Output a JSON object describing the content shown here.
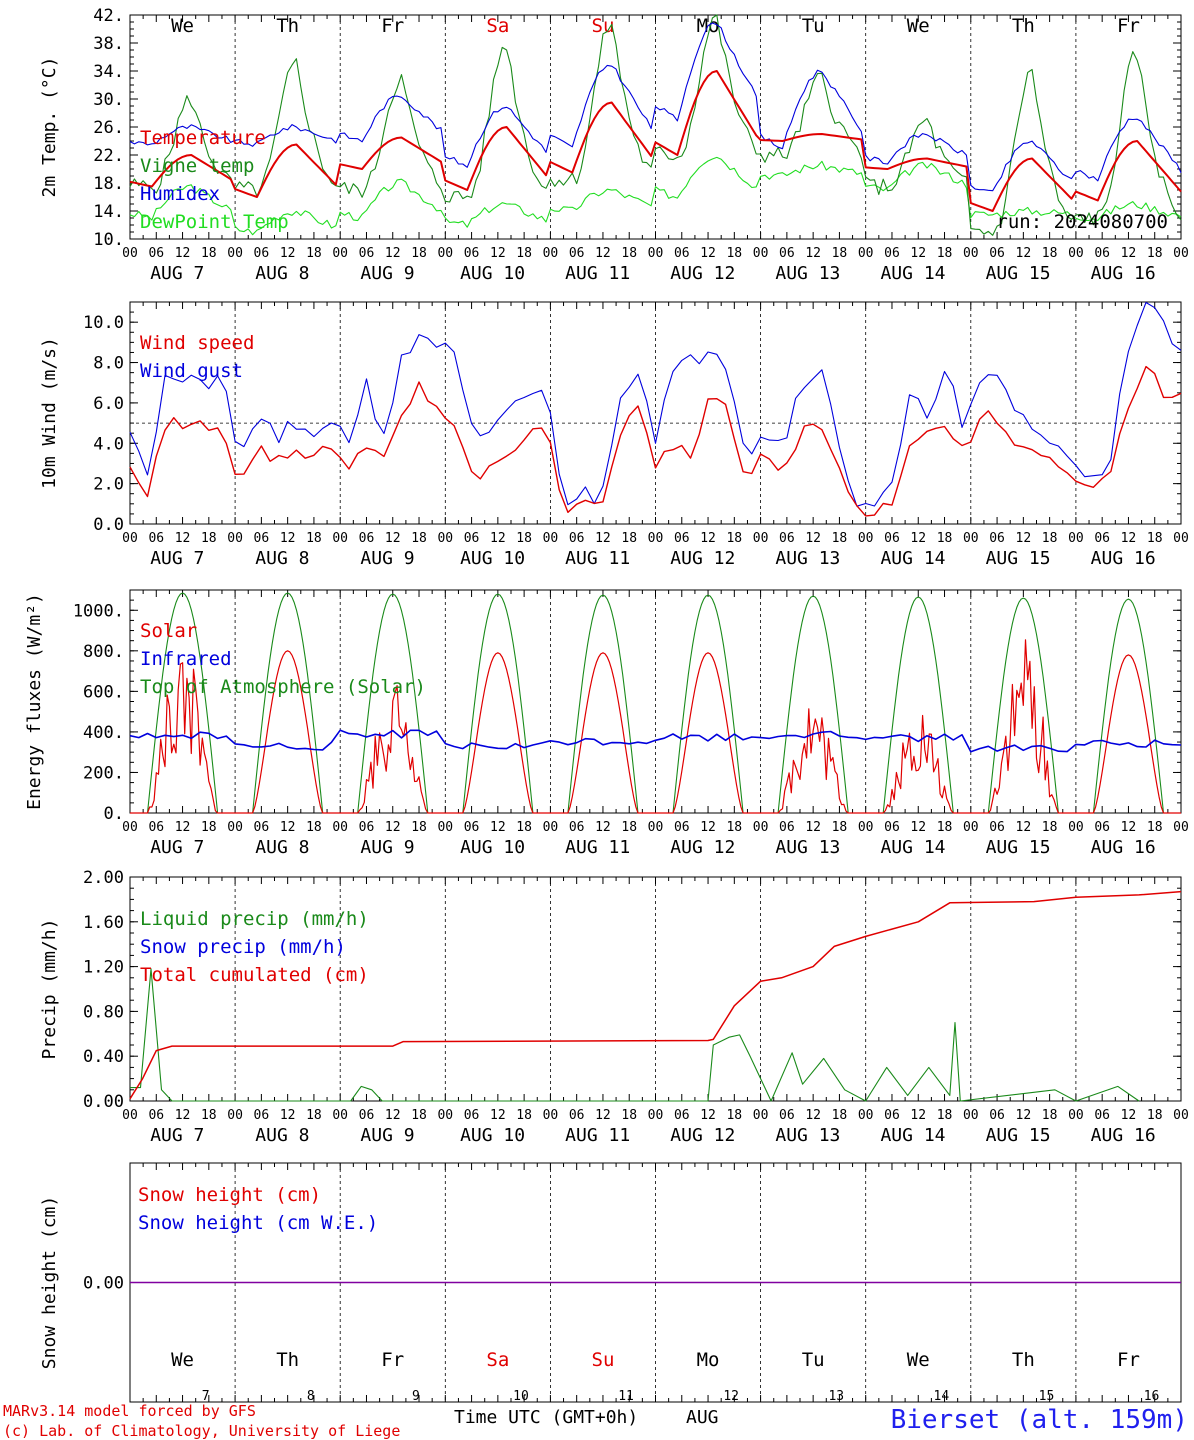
{
  "days": [
    "We",
    "Th",
    "Fr",
    "Sa",
    "Su",
    "Mo",
    "Tu",
    "We",
    "Th",
    "Fr"
  ],
  "day_colors": [
    "#000",
    "#000",
    "#000",
    "#e00000",
    "#e00000",
    "#000",
    "#000",
    "#000",
    "#000",
    "#000"
  ],
  "dates": [
    "AUG  7",
    "AUG  8",
    "AUG  9",
    "AUG 10",
    "AUG 11",
    "AUG 12",
    "AUG 13",
    "AUG 14",
    "AUG 15",
    "AUG 16"
  ],
  "day_numbers": [
    "7",
    "8",
    "9",
    "10",
    "11",
    "12",
    "13",
    "14",
    "15",
    "16"
  ],
  "hour_ticks": [
    "00",
    "06",
    "12",
    "18"
  ],
  "last_tick": "00",
  "run_label": "run: 2024080700",
  "footer": {
    "model": "MARv3.14 model forced by GFS",
    "lab": "(c) Lab. of Climatology, University of Liege",
    "xlabel": "Time UTC (GMT+0h)",
    "month": "AUG",
    "station": "Bierset (alt. 159m)"
  },
  "colors": {
    "red": "#e00000",
    "blue": "#0000dd",
    "green": "#1a8a1a",
    "lightgreen": "#22dd22",
    "purple": "#8000a0"
  },
  "chart_data": [
    {
      "type": "line",
      "ylabel": "2m Temp. (°C)",
      "ylim": [
        10,
        42
      ],
      "yticks": [
        "10.",
        "14.",
        "18.",
        "22.",
        "26.",
        "30.",
        "34.",
        "38.",
        "42."
      ],
      "series": [
        {
          "name": "Temperature",
          "color": "red"
        },
        {
          "name": "Vigne temp",
          "color": "green"
        },
        {
          "name": "Humidex",
          "color": "blue"
        },
        {
          "name": "DewPoint Temp",
          "color": "lightgreen"
        }
      ],
      "daily": {
        "Temperature": {
          "min": [
            17.5,
            16,
            20,
            17,
            19.5,
            22,
            24,
            20,
            14,
            15.5
          ],
          "max": [
            22,
            23.5,
            24.5,
            26,
            29.5,
            34,
            25,
            21.5,
            21.5,
            24
          ]
        },
        "Vigne temp": {
          "min": [
            17.5,
            17,
            17,
            16,
            18.5,
            22,
            22,
            17.5,
            11,
            13
          ],
          "max": [
            30,
            35,
            33,
            38,
            41,
            42,
            33,
            27,
            34,
            36.5
          ]
        },
        "Humidex": {
          "min": [
            23.5,
            23.5,
            24,
            20.5,
            23,
            27,
            23,
            21,
            16.5,
            18.5
          ],
          "max": [
            26,
            26,
            30.5,
            29,
            35,
            41,
            34,
            25,
            24,
            27.5
          ]
        },
        "DewPoint Temp": {
          "min": [
            13,
            11,
            13,
            12,
            14,
            16,
            19,
            17,
            13.5,
            13
          ],
          "max": [
            17.5,
            14,
            18,
            15,
            17,
            22,
            20.5,
            20.5,
            14,
            15
          ]
        }
      }
    },
    {
      "type": "line",
      "ylabel": "10m Wind (m/s)",
      "ylim": [
        0,
        11
      ],
      "yticks": [
        "0.0",
        "2.0",
        "4.0",
        "6.0",
        "8.0",
        "10.0"
      ],
      "reference_line": 5,
      "series": [
        {
          "name": "Wind speed",
          "color": "red"
        },
        {
          "name": "Wind gust",
          "color": "blue"
        }
      ],
      "speed": [
        3,
        1.6,
        5,
        5,
        4.8,
        5,
        1.8,
        4,
        3,
        3.8,
        3,
        4,
        2.5,
        4,
        3.5,
        5.5,
        7,
        5.5,
        4.5,
        2,
        3,
        3.3,
        4.8,
        4.5,
        0.8,
        1,
        0.8,
        4.5,
        5.8,
        3,
        4,
        3.2,
        6.5,
        5.5,
        2,
        3.5,
        2.5,
        4.5,
        5,
        3,
        0.8,
        0.6,
        1,
        4,
        4.5,
        5,
        3.5,
        5.5,
        5,
        4,
        3.5,
        3,
        2,
        1.7,
        2.2,
        5.5,
        8,
        6.5,
        6.3
      ],
      "gust": [
        5,
        2.6,
        7.5,
        7,
        6.8,
        7.5,
        3,
        5.5,
        4.3,
        4.7,
        4,
        5.5,
        4,
        7,
        4.5,
        8,
        9.5,
        9,
        8,
        4,
        4.2,
        6,
        6.5,
        6.3,
        1.2,
        1.5,
        1.2,
        6.5,
        7.8,
        4.5,
        7.5,
        8,
        9,
        8,
        3.5,
        4.7,
        3.8,
        7,
        8,
        4.5,
        1.2,
        1,
        1.5,
        6,
        5.5,
        8,
        4.5,
        7,
        7.3,
        5.5,
        4.7,
        3.8,
        3,
        2.5,
        3,
        8,
        10.8,
        10,
        8.3
      ]
    },
    {
      "type": "line",
      "ylabel": "Energy fluxes (W/m²)",
      "ylim": [
        0,
        1100
      ],
      "yticks": [
        "0.",
        "200.",
        "400.",
        "600.",
        "800.",
        "1000."
      ],
      "series": [
        {
          "name": "Solar",
          "color": "red"
        },
        {
          "name": "Infrared",
          "color": "blue"
        },
        {
          "name": "Top of Atmosphere (Solar)",
          "color": "green"
        }
      ],
      "toa_peak": [
        1085,
        1085,
        1080,
        1080,
        1075,
        1075,
        1070,
        1065,
        1060,
        1055
      ],
      "solar_peak": [
        750,
        800,
        600,
        790,
        790,
        790,
        550,
        480,
        780,
        780
      ],
      "infrared_mean": [
        380,
        330,
        390,
        330,
        355,
        375,
        385,
        370,
        320,
        340
      ]
    },
    {
      "type": "line",
      "ylabel": "Precip (mm/h)",
      "ylim": [
        0,
        2
      ],
      "yticks": [
        "0.00",
        "0.40",
        "0.80",
        "1.20",
        "1.60",
        "2.00"
      ],
      "series": [
        {
          "name": "Liquid precip (mm/h)",
          "color": "green"
        },
        {
          "name": "Snow precip (mm/h)",
          "color": "blue"
        },
        {
          "name": "Total cumulated (cm)",
          "color": "red"
        }
      ],
      "cumulated": [
        [
          0,
          0.02
        ],
        [
          0.12,
          0.2
        ],
        [
          0.25,
          0.45
        ],
        [
          0.4,
          0.49
        ],
        [
          2.5,
          0.49
        ],
        [
          2.6,
          0.53
        ],
        [
          5.5,
          0.54
        ],
        [
          5.55,
          0.55
        ],
        [
          5.75,
          0.85
        ],
        [
          6,
          1.07
        ],
        [
          6.2,
          1.1
        ],
        [
          6.5,
          1.2
        ],
        [
          6.7,
          1.38
        ],
        [
          7,
          1.47
        ],
        [
          7.5,
          1.6
        ],
        [
          7.8,
          1.77
        ],
        [
          8.6,
          1.78
        ],
        [
          9.0,
          1.82
        ],
        [
          9.6,
          1.84
        ],
        [
          10,
          1.87
        ]
      ],
      "liquid": [
        [
          0,
          0.12
        ],
        [
          0.1,
          0.12
        ],
        [
          0.2,
          1.18
        ],
        [
          0.3,
          0.1
        ],
        [
          0.4,
          0
        ],
        [
          2.1,
          0
        ],
        [
          2.2,
          0.13
        ],
        [
          2.3,
          0.1
        ],
        [
          2.4,
          0
        ],
        [
          5.5,
          0
        ],
        [
          5.55,
          0.5
        ],
        [
          5.7,
          0.57
        ],
        [
          5.8,
          0.59
        ],
        [
          5.9,
          0.4
        ],
        [
          6.0,
          0.2
        ],
        [
          6.1,
          0
        ],
        [
          6.3,
          0.43
        ],
        [
          6.4,
          0.15
        ],
        [
          6.6,
          0.38
        ],
        [
          6.8,
          0.1
        ],
        [
          7.0,
          0
        ],
        [
          7.2,
          0.3
        ],
        [
          7.4,
          0.05
        ],
        [
          7.6,
          0.3
        ],
        [
          7.8,
          0.05
        ],
        [
          7.85,
          0.7
        ],
        [
          7.9,
          0
        ],
        [
          8.8,
          0.1
        ],
        [
          9.0,
          0
        ],
        [
          9.4,
          0.13
        ],
        [
          9.6,
          0
        ]
      ]
    },
    {
      "type": "line",
      "ylabel": "Snow height (cm)",
      "ylim": [
        -1,
        1
      ],
      "yticks": [
        "0.00"
      ],
      "series": [
        {
          "name": "Snow height (cm)",
          "color": "red"
        },
        {
          "name": "Snow height (cm W.E.)",
          "color": "blue"
        }
      ],
      "values": [
        0,
        0
      ]
    }
  ]
}
